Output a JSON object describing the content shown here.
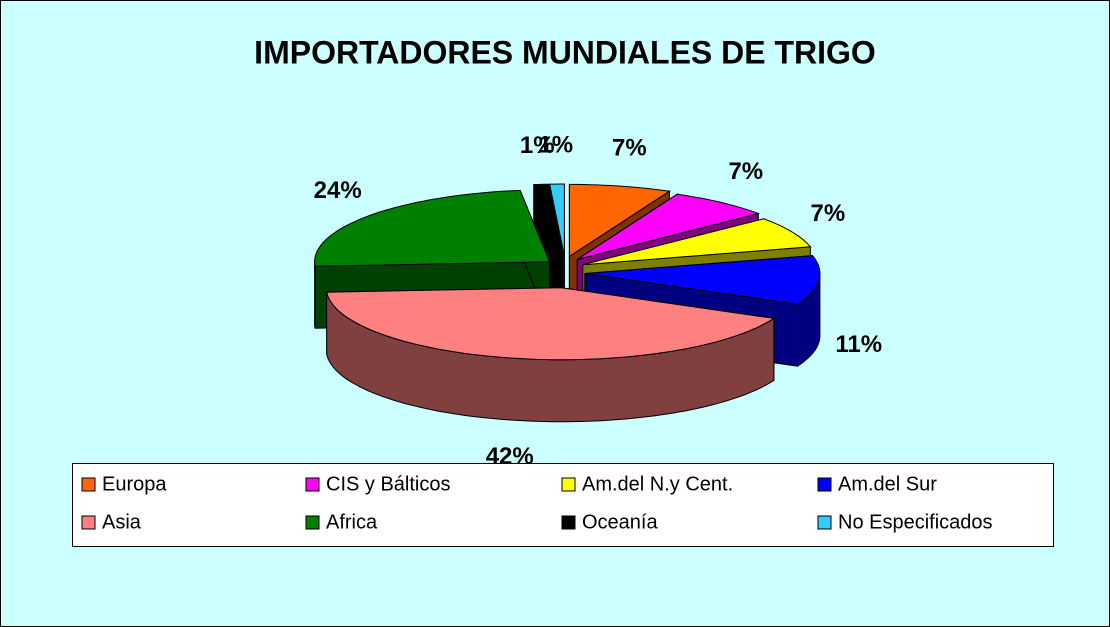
{
  "chart_data": {
    "type": "pie3d",
    "title": "IMPORTADORES MUNDIALES DE TRIGO",
    "categories": [
      "Europa",
      "CIS y Bálticos",
      "Am.del N.y Cent.",
      "Am.del Sur",
      "Asia",
      "Africa",
      "Oceanía",
      "No Especificados"
    ],
    "values": [
      7,
      7,
      7,
      11,
      42,
      24,
      1,
      1
    ],
    "value_labels": [
      "7%",
      "7%",
      "7%",
      "11%",
      "42%",
      "24%",
      "1%",
      "1%"
    ],
    "colors": [
      "#ff6600",
      "#ff00ff",
      "#ffff00",
      "#0000ff",
      "#ff8080",
      "#008000",
      "#000000",
      "#33ccff"
    ],
    "legend": "bottom"
  }
}
